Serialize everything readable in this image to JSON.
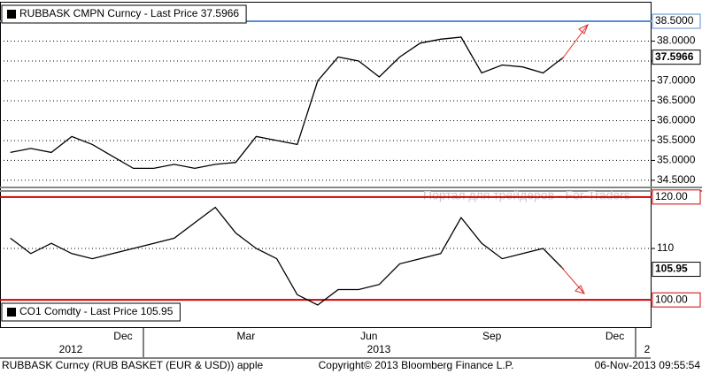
{
  "chart_data": [
    {
      "type": "line",
      "title": "RUBBASK CMPN Curncy - Last Price 37.5966",
      "series": [
        {
          "name": "RUBBASK CMPN Curncy",
          "color": "#000000",
          "values": [
            35.2,
            35.3,
            35.2,
            35.6,
            35.4,
            35.1,
            34.8,
            34.8,
            34.9,
            34.8,
            34.9,
            34.95,
            35.6,
            35.5,
            35.4,
            37.0,
            37.6,
            37.5,
            37.1,
            37.6,
            37.95,
            38.05,
            38.1,
            37.2,
            37.4,
            37.35,
            37.2,
            37.5966,
            null,
            null,
            null
          ]
        }
      ],
      "ylim": [
        34.32,
        38.99
      ],
      "yticks": [
        {
          "value": 38,
          "label": "38.0000"
        },
        {
          "value": 37.5,
          "label": "37.5000"
        },
        {
          "value": 37,
          "label": "37.0000"
        },
        {
          "value": 36.5,
          "label": "36.5000"
        },
        {
          "value": 36,
          "label": "36.0000"
        },
        {
          "value": 35.5,
          "label": "35.5000"
        },
        {
          "value": 35,
          "label": "35.0000"
        },
        {
          "value": 34.5,
          "label": "34.5000"
        }
      ],
      "reference_lines": [
        {
          "value": 38.5,
          "label": "38.5000",
          "color": "#5b8fd0"
        }
      ],
      "grid": true
    },
    {
      "type": "line",
      "title": "CO1 Comdty - Last Price 105.95",
      "series": [
        {
          "name": "CO1 Comdty",
          "color": "#000000",
          "values": [
            112,
            109,
            111,
            109,
            108,
            109,
            110,
            111,
            112,
            115,
            118,
            113,
            110,
            108,
            101,
            99,
            102,
            102,
            103,
            107,
            108,
            109,
            116,
            111,
            108,
            109,
            110,
            105.95,
            null,
            null,
            null
          ]
        }
      ],
      "ylim": [
        94.7,
        121.0
      ],
      "yticks": [
        110
      ],
      "reference_lines": [
        {
          "value": 120,
          "label": "120.00",
          "color": "#d00000"
        },
        {
          "value": 100,
          "label": "100.00",
          "color": "#d00000"
        }
      ],
      "grid": true
    }
  ],
  "categories": [
    null,
    null,
    null,
    null,
    null,
    "Dec",
    null,
    null,
    null,
    null,
    null,
    "Mar",
    null,
    null,
    null,
    null,
    null,
    "Jun",
    null,
    null,
    null,
    null,
    null,
    "Sep",
    null,
    null,
    null,
    null,
    null,
    "Dec",
    null
  ],
  "year_labels": [
    "2012",
    "2013",
    "2"
  ],
  "watermark": "Портал для трейдеров - For-Traders",
  "footer": {
    "left": "RUBBASK Curncy (RUB BASKET (EUR & USD)) apple",
    "center": "Copyright© 2013 Bloomberg Finance L.P.",
    "right": "06-Nov-2013 09:55:54"
  }
}
